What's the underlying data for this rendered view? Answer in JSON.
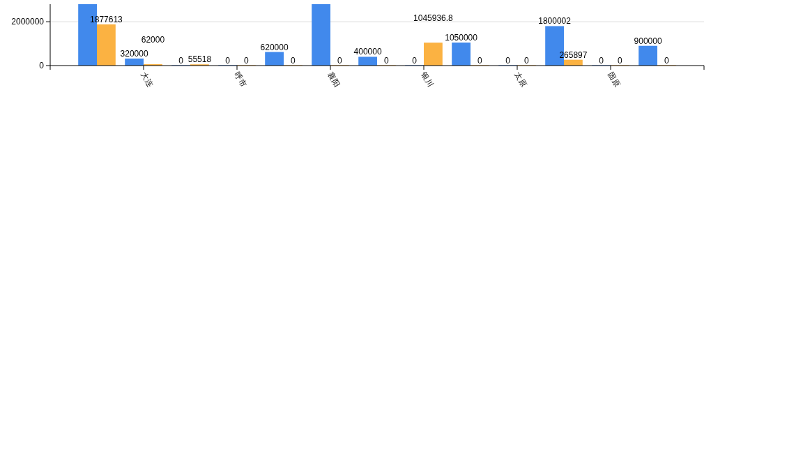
{
  "chart_data": {
    "type": "bar",
    "categories": [
      null,
      "大连",
      null,
      "呼市",
      null,
      "襄阳",
      null,
      "银川",
      null,
      "太原",
      null,
      "固原",
      null
    ],
    "series": [
      {
        "color": "#4189ec",
        "values": [
          2800000,
          320000,
          0,
          0,
          620000,
          2800000,
          400000,
          0,
          1050000,
          0,
          1800002,
          0,
          900000
        ],
        "value_labels": [
          null,
          "320000",
          "0",
          "0",
          "620000",
          null,
          "400000",
          "0",
          "1050000",
          "0",
          "1800002",
          "0",
          "900000"
        ]
      },
      {
        "color": "#fbb242",
        "values": [
          1877613,
          62000,
          55518,
          0,
          0,
          0,
          0,
          1045936.8,
          0,
          0,
          265897,
          0,
          0
        ],
        "value_labels": [
          "1877613",
          "62000",
          "55518",
          "0",
          "0",
          "0",
          "0",
          "1045936.8",
          "0",
          "0",
          "265897",
          "0",
          "0"
        ]
      }
    ],
    "ylim": [
      0,
      2800000
    ],
    "yticks": [
      0,
      2000000
    ],
    "grid": "y"
  }
}
